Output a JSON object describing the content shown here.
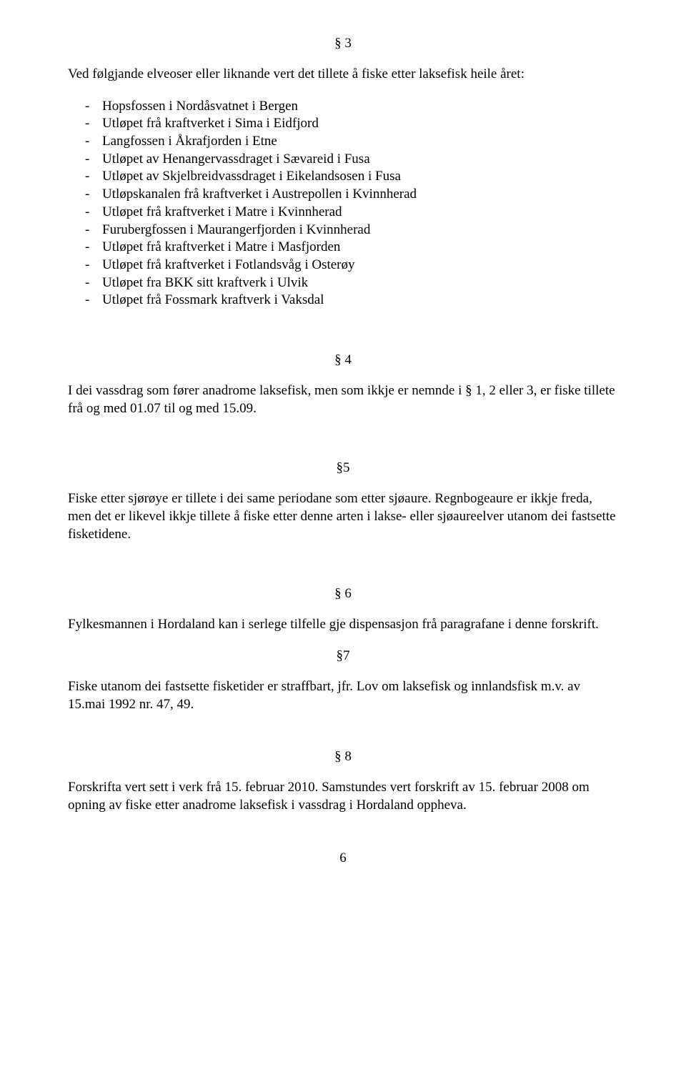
{
  "sections": {
    "s3": {
      "num": "§ 3",
      "intro": "Ved følgjande elveoser eller liknande vert det tillete å fiske etter laksefisk heile året:",
      "items": [
        "Hopsfossen i Nordåsvatnet i Bergen",
        "Utløpet frå kraftverket i Sima i Eidfjord",
        "Langfossen i Åkrafjorden i Etne",
        "Utløpet av Henangervassdraget i Sævareid i Fusa",
        "Utløpet av Skjelbreidvassdraget i Eikelandsosen i Fusa",
        "Utløpskanalen frå kraftverket i Austrepollen i Kvinnherad",
        "Utløpet frå kraftverket i Matre i Kvinnherad",
        "Furubergfossen i Maurangerfjorden i Kvinnherad",
        "Utløpet frå kraftverket i Matre i Masfjorden",
        "Utløpet frå kraftverket i Fotlandsvåg i Osterøy",
        "Utløpet fra BKK sitt kraftverk i Ulvik",
        "Utløpet frå Fossmark kraftverk i Vaksdal"
      ]
    },
    "s4": {
      "num": "§ 4",
      "body": "I dei vassdrag som fører anadrome laksefisk, men som ikkje er nemnde i § 1, 2 eller 3, er fiske tillete frå og med 01.07 til og med 15.09."
    },
    "s5": {
      "num": "§5",
      "body": "Fiske etter sjørøye er tillete i dei same periodane som etter sjøaure. Regnbogeaure er ikkje freda, men det er likevel ikkje tillete å fiske etter denne arten i lakse- eller sjøaureelver utanom dei fastsette fisketidene."
    },
    "s6": {
      "num": "§ 6",
      "body": "Fylkesmannen i Hordaland kan i serlege tilfelle gje dispensasjon frå paragrafane i denne forskrift."
    },
    "s7": {
      "num": "§7",
      "body": "Fiske utanom dei fastsette fisketider er straffbart, jfr. Lov om laksefisk og innlandsfisk m.v. av 15.mai 1992 nr. 47, 49."
    },
    "s8": {
      "num": "§ 8",
      "body": "Forskrifta vert sett i verk frå 15. februar 2010. Samstundes vert forskrift av 15. februar 2008 om opning av fiske etter anadrome laksefisk i vassdrag i Hordaland oppheva."
    }
  },
  "page_number": "6"
}
